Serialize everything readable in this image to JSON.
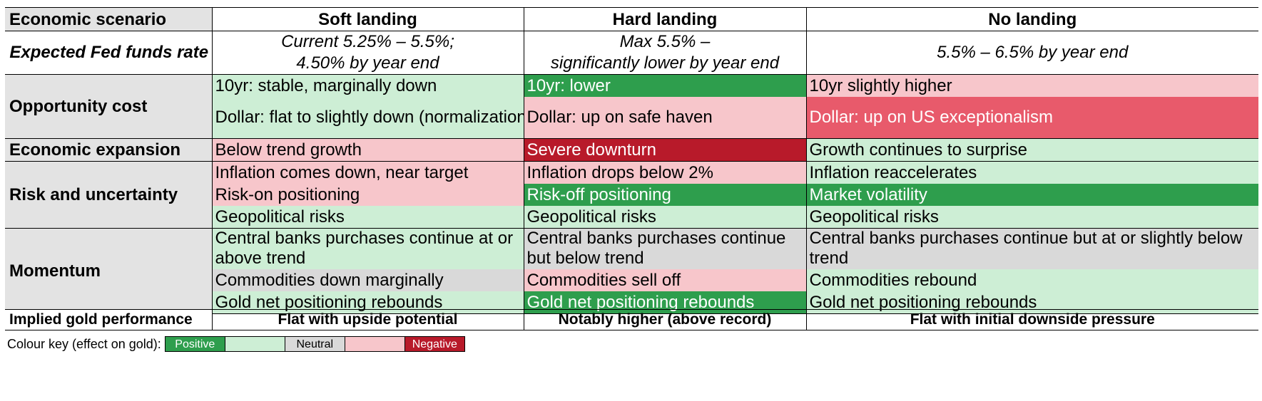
{
  "header": {
    "label": "Economic scenario",
    "cols": [
      "Soft landing",
      "Hard landing",
      "No landing"
    ]
  },
  "fed": {
    "label": "Expected Fed funds rate",
    "soft_line1": "Current 5.25% – 5.5%;",
    "soft_line2": "4.50% by year end",
    "hard_line1": "Max 5.5% –",
    "hard_line2": "significantly lower by year end",
    "no": "5.5% – 6.5% by year end"
  },
  "opportunity": {
    "label": "Opportunity cost",
    "rows": [
      [
        "10yr: stable, marginally down",
        "10yr: lower",
        "10yr slightly higher"
      ],
      [
        "Dollar: flat to slightly down (normalization)",
        "Dollar: up on safe haven",
        "Dollar: up on US exceptionalism"
      ]
    ]
  },
  "expansion": {
    "label": "Economic expansion",
    "rows": [
      [
        "Below trend growth",
        "Severe downturn",
        "Growth continues to surprise"
      ]
    ]
  },
  "risk": {
    "label": "Risk and uncertainty",
    "rows": [
      [
        "Inflation comes down, near target",
        "Inflation drops below 2%",
        "Inflation reaccelerates"
      ],
      [
        "Risk-on positioning",
        "Risk-off positioning",
        "Market volatility"
      ],
      [
        "Geopolitical risks",
        "Geopolitical risks",
        "Geopolitical risks"
      ]
    ]
  },
  "momentum": {
    "label": "Momentum",
    "rows": [
      [
        "Central banks purchases continue at or above trend",
        "Central banks purchases continue but below trend",
        "Central banks purchases continue but at or slightly below trend"
      ],
      [
        "Commodities down marginally",
        "Commodities sell off",
        "Commodities rebound"
      ],
      [
        "Gold net positioning rebounds",
        "Gold net positioning rebounds",
        "Gold net positioning rebounds"
      ]
    ]
  },
  "implied": {
    "label": "Implied gold performance",
    "cols": [
      "Flat with upside potential",
      "Notably higher (above record)",
      "Flat with initial downside pressure"
    ]
  },
  "key": {
    "title": "Colour key (effect on gold):",
    "positive": "Positive",
    "neutral": "Neutral",
    "negative": "Negative",
    "colors": {
      "positive": "#2e9e4d",
      "light_positive": "#cdeed5",
      "neutral": "#d9d9d9",
      "light_negative": "#f7c6cb",
      "negative": "#b81a2a"
    }
  }
}
